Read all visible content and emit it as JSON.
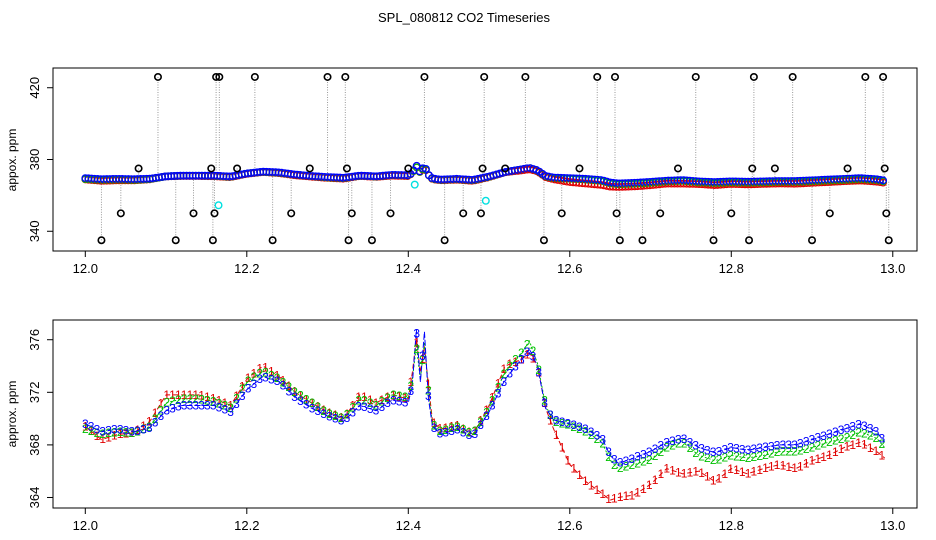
{
  "chart_data": {
    "type": "scatter",
    "title": "SPL_080812  CO2 Timeseries",
    "colors": {
      "series1": "#e00000",
      "series2": "#00c000",
      "series3": "#0000ff",
      "cal": "#00e0e0",
      "outlier": "#000000",
      "drop": "#999999"
    },
    "panels": [
      {
        "name": "overview",
        "ylabel": "appox. ppm",
        "xlim": [
          11.96,
          13.03
        ],
        "ylim": [
          329,
          431
        ],
        "xticks": [
          12.0,
          12.2,
          12.4,
          12.6,
          12.8,
          13.0
        ],
        "xtick_labels": [
          "12.0",
          "12.2",
          "12.4",
          "12.6",
          "12.8",
          "13.0"
        ],
        "yticks": [
          340,
          380,
          420
        ],
        "ytick_labels": [
          "340",
          "380",
          "420"
        ],
        "outliers": [
          [
            12.02,
            335
          ],
          [
            12.044,
            350
          ],
          [
            12.066,
            375
          ],
          [
            12.09,
            426
          ],
          [
            12.112,
            335
          ],
          [
            12.134,
            350
          ],
          [
            12.156,
            375
          ],
          [
            12.158,
            335
          ],
          [
            12.16,
            350
          ],
          [
            12.162,
            426
          ],
          [
            12.166,
            426
          ],
          [
            12.188,
            375
          ],
          [
            12.21,
            426
          ],
          [
            12.232,
            335
          ],
          [
            12.255,
            350
          ],
          [
            12.278,
            375
          ],
          [
            12.3,
            426
          ],
          [
            12.322,
            426
          ],
          [
            12.324,
            375
          ],
          [
            12.326,
            335
          ],
          [
            12.33,
            350
          ],
          [
            12.355,
            335
          ],
          [
            12.378,
            350
          ],
          [
            12.4,
            375
          ],
          [
            12.42,
            426
          ],
          [
            12.445,
            335
          ],
          [
            12.468,
            350
          ],
          [
            12.49,
            350
          ],
          [
            12.492,
            375
          ],
          [
            12.494,
            426
          ],
          [
            12.52,
            375
          ],
          [
            12.545,
            426
          ],
          [
            12.568,
            335
          ],
          [
            12.59,
            350
          ],
          [
            12.612,
            375
          ],
          [
            12.634,
            426
          ],
          [
            12.656,
            426
          ],
          [
            12.658,
            350
          ],
          [
            12.662,
            335
          ],
          [
            12.69,
            335
          ],
          [
            12.712,
            350
          ],
          [
            12.734,
            375
          ],
          [
            12.756,
            426
          ],
          [
            12.778,
            335
          ],
          [
            12.8,
            350
          ],
          [
            12.822,
            335
          ],
          [
            12.826,
            375
          ],
          [
            12.828,
            426
          ],
          [
            12.854,
            375
          ],
          [
            12.876,
            426
          ],
          [
            12.9,
            335
          ],
          [
            12.922,
            350
          ],
          [
            12.944,
            375
          ],
          [
            12.966,
            426
          ],
          [
            12.988,
            426
          ],
          [
            12.99,
            375
          ],
          [
            12.992,
            350
          ],
          [
            12.995,
            335
          ]
        ]
      },
      {
        "name": "detail",
        "ylabel": "approx. ppm",
        "xlim": [
          11.96,
          13.03
        ],
        "ylim": [
          363.2,
          377.5
        ],
        "xticks": [
          12.0,
          12.2,
          12.4,
          12.6,
          12.8,
          13.0
        ],
        "xtick_labels": [
          "12.0",
          "12.2",
          "12.4",
          "12.6",
          "12.8",
          "13.0"
        ],
        "yticks": [
          364,
          368,
          372,
          376
        ],
        "ytick_labels": [
          "364",
          "368",
          "372",
          "376"
        ]
      }
    ],
    "series": [
      {
        "name": "1",
        "x": [
          12.0,
          12.02,
          12.04,
          12.06,
          12.08,
          12.1,
          12.12,
          12.14,
          12.16,
          12.18,
          12.2,
          12.22,
          12.24,
          12.26,
          12.28,
          12.3,
          12.32,
          12.34,
          12.36,
          12.38,
          12.4,
          12.405,
          12.41,
          12.415,
          12.42,
          12.425,
          12.43,
          12.44,
          12.46,
          12.48,
          12.5,
          12.52,
          12.54,
          12.55,
          12.56,
          12.57,
          12.58,
          12.6,
          12.62,
          12.64,
          12.65,
          12.66,
          12.68,
          12.7,
          12.72,
          12.74,
          12.76,
          12.78,
          12.8,
          12.82,
          12.84,
          12.86,
          12.88,
          12.9,
          12.92,
          12.94,
          12.96,
          12.98,
          12.99
        ],
        "values": [
          369.4,
          368.4,
          368.8,
          368.9,
          369.8,
          371.8,
          371.8,
          371.8,
          371.5,
          371.0,
          373.0,
          374.0,
          373.2,
          372.0,
          371.2,
          370.5,
          370.0,
          371.8,
          371.2,
          371.8,
          371.5,
          373.5,
          376.0,
          373.5,
          375.5,
          372.5,
          369.8,
          369.2,
          369.5,
          368.8,
          371.0,
          374.0,
          374.5,
          375.0,
          374.0,
          370.8,
          369.2,
          366.5,
          365.2,
          364.3,
          363.8,
          364.0,
          364.2,
          365.0,
          366.2,
          365.8,
          366.0,
          365.2,
          366.2,
          365.8,
          366.2,
          366.5,
          366.2,
          366.8,
          367.2,
          367.8,
          368.2,
          367.5,
          367.0
        ]
      },
      {
        "name": "2",
        "x": [
          12.0,
          12.02,
          12.04,
          12.06,
          12.08,
          12.1,
          12.12,
          12.14,
          12.16,
          12.18,
          12.2,
          12.22,
          12.24,
          12.26,
          12.28,
          12.3,
          12.32,
          12.34,
          12.36,
          12.38,
          12.4,
          12.405,
          12.41,
          12.415,
          12.42,
          12.425,
          12.43,
          12.44,
          12.46,
          12.48,
          12.5,
          12.52,
          12.54,
          12.55,
          12.56,
          12.57,
          12.58,
          12.6,
          12.62,
          12.64,
          12.65,
          12.66,
          12.68,
          12.7,
          12.72,
          12.74,
          12.76,
          12.78,
          12.8,
          12.82,
          12.84,
          12.86,
          12.88,
          12.9,
          12.92,
          12.94,
          12.96,
          12.98,
          12.99
        ],
        "values": [
          369.2,
          368.8,
          369.0,
          368.9,
          369.4,
          371.2,
          371.5,
          371.5,
          371.3,
          370.8,
          372.8,
          373.6,
          373.0,
          372.0,
          371.2,
          370.4,
          370.0,
          371.5,
          371.0,
          371.8,
          371.6,
          373.0,
          375.5,
          373.0,
          375.8,
          372.0,
          369.6,
          369.0,
          369.4,
          368.8,
          370.8,
          373.6,
          375.0,
          375.9,
          374.2,
          371.0,
          369.8,
          369.5,
          369.0,
          368.2,
          366.8,
          366.2,
          366.5,
          366.9,
          367.8,
          368.2,
          367.2,
          366.8,
          367.2,
          367.0,
          367.2,
          367.5,
          367.5,
          367.8,
          368.2,
          368.5,
          369.0,
          368.5,
          367.8
        ]
      },
      {
        "name": "3",
        "x": [
          12.0,
          12.02,
          12.04,
          12.06,
          12.08,
          12.1,
          12.12,
          12.14,
          12.16,
          12.18,
          12.2,
          12.22,
          12.24,
          12.26,
          12.28,
          12.3,
          12.32,
          12.34,
          12.36,
          12.38,
          12.4,
          12.405,
          12.41,
          12.415,
          12.42,
          12.425,
          12.43,
          12.44,
          12.46,
          12.48,
          12.5,
          12.52,
          12.54,
          12.55,
          12.56,
          12.57,
          12.58,
          12.6,
          12.62,
          12.64,
          12.65,
          12.66,
          12.68,
          12.7,
          12.72,
          12.74,
          12.76,
          12.78,
          12.8,
          12.82,
          12.84,
          12.86,
          12.88,
          12.9,
          12.92,
          12.94,
          12.96,
          12.98,
          12.99
        ],
        "values": [
          369.6,
          369.0,
          369.2,
          369.0,
          369.3,
          370.6,
          371.0,
          371.0,
          371.0,
          370.5,
          372.2,
          373.2,
          372.8,
          371.6,
          370.8,
          370.2,
          369.8,
          371.0,
          370.6,
          371.4,
          371.2,
          372.6,
          376.8,
          372.8,
          376.6,
          371.5,
          369.4,
          368.8,
          369.2,
          368.6,
          370.5,
          373.0,
          374.5,
          375.3,
          374.0,
          370.8,
          369.9,
          369.6,
          369.2,
          368.5,
          367.2,
          366.6,
          367.0,
          367.5,
          368.2,
          368.5,
          367.8,
          367.4,
          367.8,
          367.6,
          367.8,
          368.0,
          368.0,
          368.4,
          368.8,
          369.2,
          369.6,
          369.0,
          368.2
        ]
      }
    ],
    "cal_points": [
      [
        12.165,
        354.5
      ],
      [
        12.408,
        366
      ],
      [
        12.496,
        357
      ]
    ]
  }
}
